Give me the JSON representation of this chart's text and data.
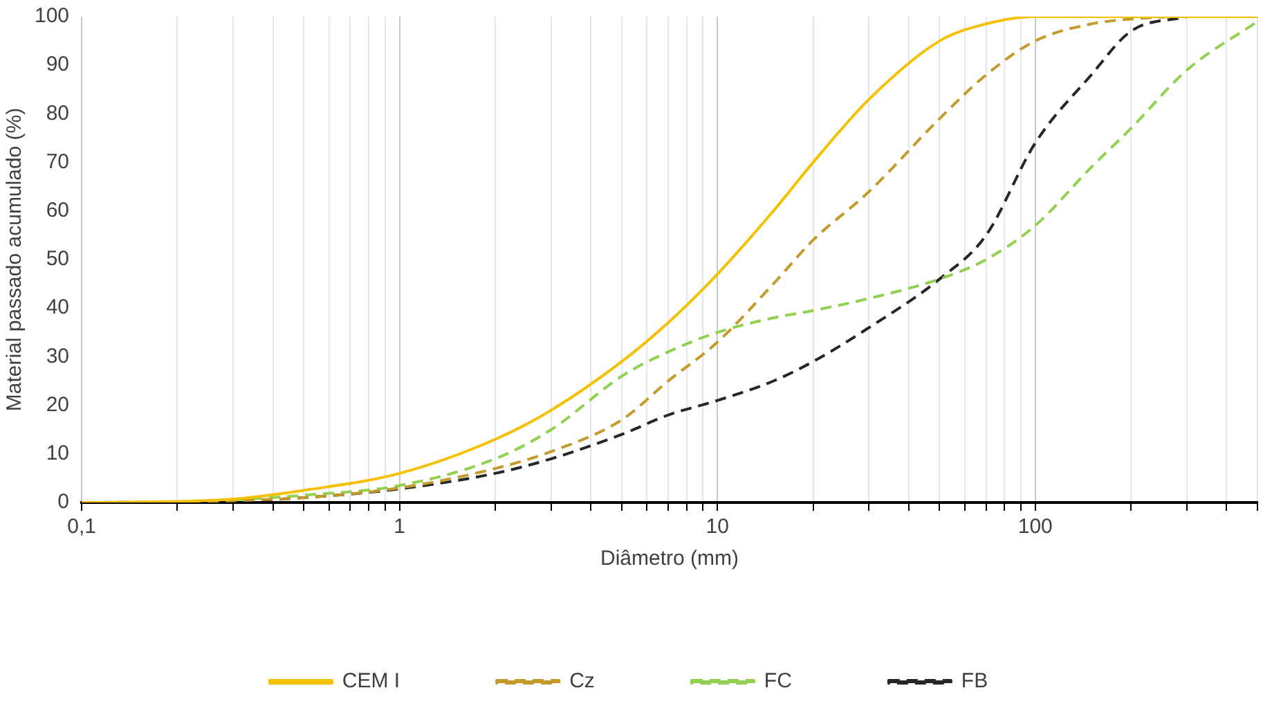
{
  "chart_data": {
    "type": "line",
    "xlabel": "Diâmetro (mm)",
    "ylabel": "Material passado acumulado (%)",
    "log": "x",
    "grid": "x",
    "legend": "bottom",
    "marker": "none",
    "xlim": [
      0.1,
      500
    ],
    "ylim": [
      0,
      100
    ],
    "xticks": [
      {
        "value": 0.1,
        "label": "0,1"
      },
      {
        "value": 0.2,
        "label": null
      },
      {
        "value": 0.3,
        "label": null
      },
      {
        "value": 0.4,
        "label": null
      },
      {
        "value": 0.5,
        "label": null
      },
      {
        "value": 0.6,
        "label": null
      },
      {
        "value": 0.7,
        "label": null
      },
      {
        "value": 0.8,
        "label": null
      },
      {
        "value": 0.9,
        "label": null
      },
      1,
      {
        "value": 2,
        "label": null
      },
      {
        "value": 3,
        "label": null
      },
      {
        "value": 4,
        "label": null
      },
      {
        "value": 5,
        "label": null
      },
      {
        "value": 6,
        "label": null
      },
      {
        "value": 7,
        "label": null
      },
      {
        "value": 8,
        "label": null
      },
      {
        "value": 9,
        "label": null
      },
      10,
      {
        "value": 20,
        "label": null
      },
      {
        "value": 30,
        "label": null
      },
      {
        "value": 40,
        "label": null
      },
      {
        "value": 50,
        "label": null
      },
      {
        "value": 60,
        "label": null
      },
      {
        "value": 70,
        "label": null
      },
      {
        "value": 80,
        "label": null
      },
      {
        "value": 90,
        "label": null
      },
      100,
      {
        "value": 200,
        "label": null
      },
      {
        "value": 300,
        "label": null
      },
      {
        "value": 400,
        "label": null
      },
      {
        "value": 500,
        "label": null
      }
    ],
    "yticks": [
      0,
      10,
      20,
      30,
      40,
      50,
      60,
      70,
      80,
      90,
      100
    ],
    "x": [
      0.1,
      0.2,
      0.3,
      0.5,
      1,
      2,
      3,
      5,
      7,
      10,
      15,
      20,
      30,
      50,
      70,
      100,
      150,
      200,
      300,
      500
    ],
    "series": [
      {
        "name": "CEM I",
        "color": "#f5c000",
        "line_style": "solid",
        "values": [
          0,
          0.2,
          0.7,
          2.5,
          6,
          13,
          19,
          29,
          37,
          47,
          60,
          70,
          83,
          95,
          98.5,
          100,
          100,
          100,
          100,
          100
        ]
      },
      {
        "name": "Cz",
        "color": "#c49a2a",
        "line_style": "dashed",
        "values": [
          0,
          0.1,
          0.4,
          1,
          3,
          7,
          10.5,
          17,
          25,
          33,
          45,
          54,
          64,
          79,
          88,
          95,
          98.5,
          99.5,
          100,
          100
        ]
      },
      {
        "name": "FC",
        "color": "#92d050",
        "line_style": "dashed",
        "values": [
          null,
          null,
          0.5,
          1.5,
          3.5,
          9,
          15,
          26,
          31,
          35,
          38,
          39.5,
          42,
          46,
          50,
          57,
          69,
          77,
          89,
          99
        ]
      },
      {
        "name": "FB",
        "color": "#262626",
        "line_style": "dashed",
        "values": [
          0,
          0.1,
          0.3,
          1,
          2.8,
          6,
          9,
          14,
          18,
          21,
          25,
          29,
          36,
          46,
          55,
          74,
          88,
          97,
          100,
          null
        ]
      }
    ]
  }
}
